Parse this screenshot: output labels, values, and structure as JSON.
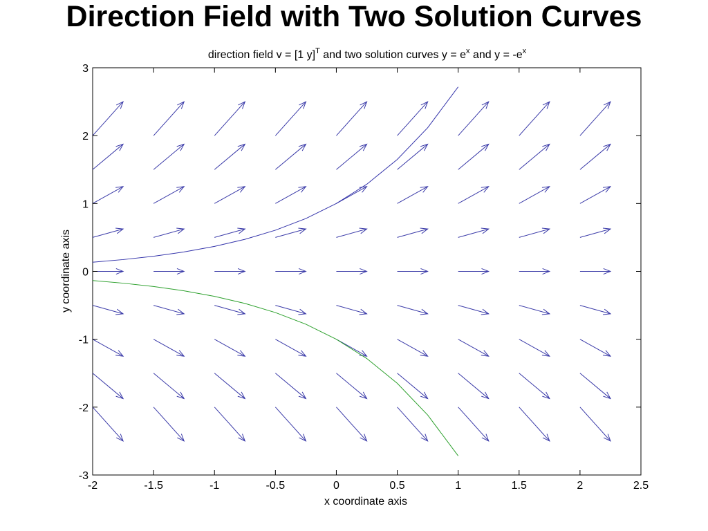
{
  "slide_title": "Direction Field with Two Solution Curves",
  "chart_data": {
    "type": "line",
    "title": {
      "main": "direction field v = [1  y]",
      "sup1": "T",
      "mid": "  and two solution curves y = e",
      "sup2": "x",
      "mid2": " and y = -e",
      "sup3": "x"
    },
    "xlabel": "x coordinate axis",
    "ylabel": "y coordinate axis",
    "xlim": [
      -2,
      2.5
    ],
    "ylim": [
      -3,
      3
    ],
    "xticks": [
      -2,
      -1.5,
      -1,
      -0.5,
      0,
      0.5,
      1,
      1.5,
      2,
      2.5
    ],
    "xtick_labels": [
      "-2",
      "-1.5",
      "-1",
      "-0.5",
      "0",
      "0.5",
      "1",
      "1.5",
      "2",
      "2.5"
    ],
    "yticks": [
      -3,
      -2,
      -1,
      0,
      1,
      2,
      3
    ],
    "ytick_labels": [
      "-3",
      "-2",
      "-1",
      "0",
      "1",
      "2",
      "3"
    ],
    "quiver": {
      "x": [
        -2,
        -1.5,
        -1,
        -0.5,
        0,
        0.5,
        1,
        1.5,
        2
      ],
      "y": [
        -2,
        -1.5,
        -1,
        -0.5,
        0,
        0.5,
        1,
        1.5,
        2
      ],
      "u": 1,
      "v": "y",
      "scale": 0.25,
      "color": "#3a3aa8"
    },
    "series": [
      {
        "expr": "e^x",
        "x": [
          -2,
          -1.75,
          -1.5,
          -1.25,
          -1,
          -0.75,
          -0.5,
          -0.25,
          0,
          0.25,
          0.5,
          0.75,
          1
        ],
        "y": [
          0.1353,
          0.1738,
          0.2231,
          0.2865,
          0.3679,
          0.4724,
          0.6065,
          0.7788,
          1.0,
          1.284,
          1.6487,
          2.117,
          2.7183
        ],
        "color": "#3333aa"
      },
      {
        "expr": "-e^x",
        "x": [
          -2,
          -1.75,
          -1.5,
          -1.25,
          -1,
          -0.75,
          -0.5,
          -0.25,
          0,
          0.25,
          0.5,
          0.75,
          1
        ],
        "y": [
          -0.1353,
          -0.1738,
          -0.2231,
          -0.2865,
          -0.3679,
          -0.4724,
          -0.6065,
          -0.7788,
          -1.0,
          -1.284,
          -1.6487,
          -2.117,
          -2.7183
        ],
        "color": "#2ca02c"
      }
    ],
    "grid": false,
    "legend": "none"
  }
}
